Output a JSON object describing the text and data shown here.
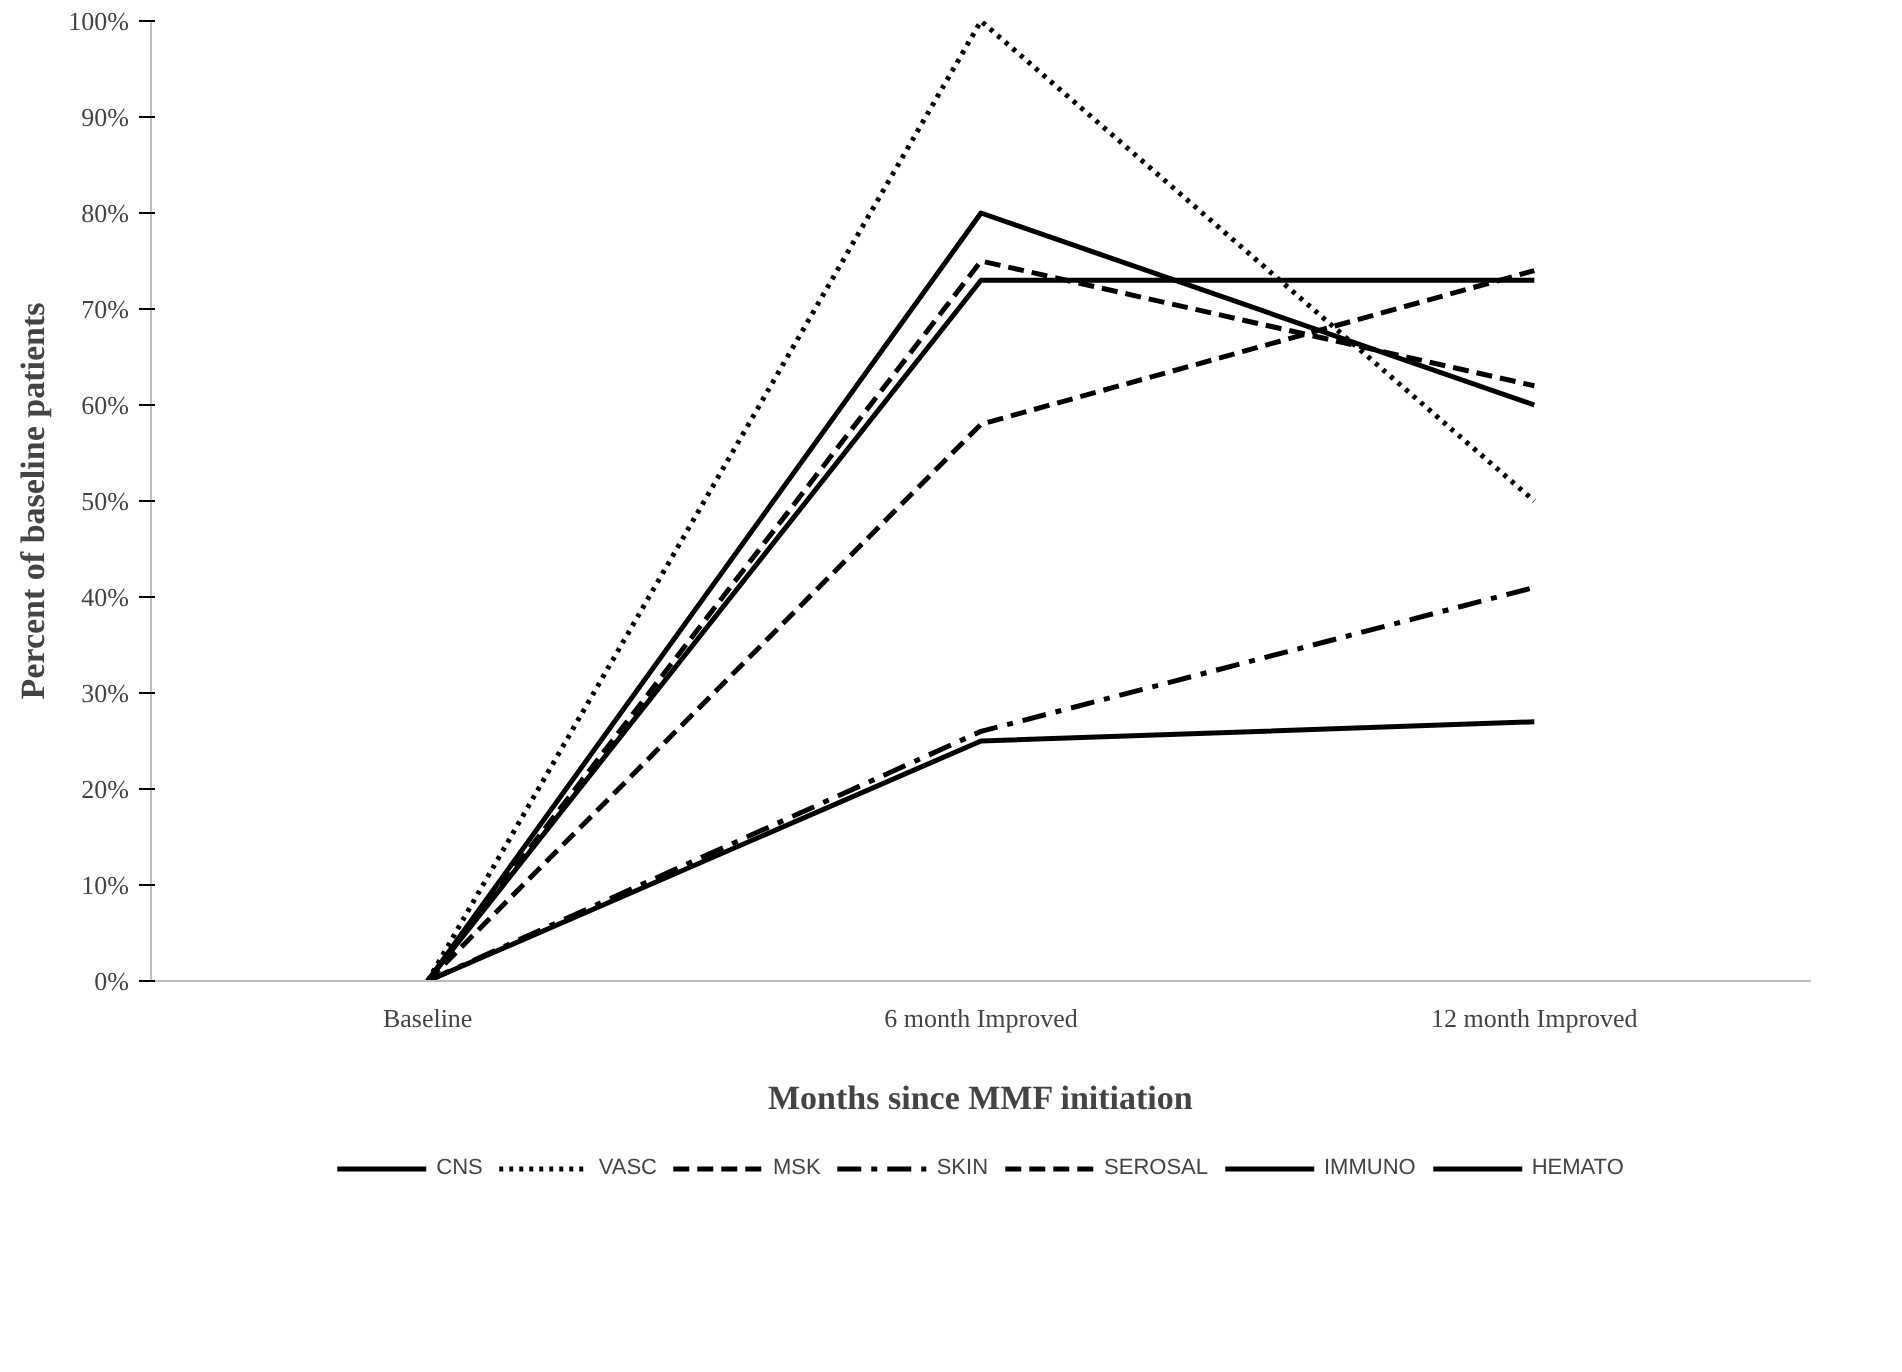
{
  "chart_data": {
    "type": "line",
    "xlabel": "Months since MMF initiation",
    "ylabel": "Percent of baseline patients",
    "categories": [
      "Baseline",
      "6 month Improved",
      "12 month Improved"
    ],
    "ylim": [
      0,
      100
    ],
    "yticks": [
      {
        "value": 0,
        "label": "0%"
      },
      {
        "value": 10,
        "label": "10%"
      },
      {
        "value": 20,
        "label": "20%"
      },
      {
        "value": 30,
        "label": "30%"
      },
      {
        "value": 40,
        "label": "40%"
      },
      {
        "value": 50,
        "label": "50%"
      },
      {
        "value": 60,
        "label": "60%"
      },
      {
        "value": 70,
        "label": "70%"
      },
      {
        "value": 80,
        "label": "80%"
      },
      {
        "value": 90,
        "label": "90%"
      },
      {
        "value": 100,
        "label": "100%"
      }
    ],
    "grid": false,
    "legend": "bottom",
    "marker": "none",
    "series": [
      {
        "name": "CNS",
        "color": "#000000",
        "line_style": "solid",
        "values": [
          0,
          73,
          73
        ]
      },
      {
        "name": "VASC",
        "color": "#000000",
        "line_style": "dotted",
        "values": [
          0,
          100,
          50
        ]
      },
      {
        "name": "MSK",
        "color": "#000000",
        "line_style": "dashed",
        "values": [
          0,
          58,
          74
        ]
      },
      {
        "name": "SKIN",
        "color": "#000000",
        "line_style": "dashdot",
        "values": [
          0,
          26,
          41
        ]
      },
      {
        "name": "SEROSAL",
        "color": "#000000",
        "line_style": "dashed",
        "values": [
          0,
          75,
          62
        ]
      },
      {
        "name": "IMMUNO",
        "color": "#000000",
        "line_style": "solid",
        "values": [
          0,
          80,
          60
        ]
      },
      {
        "name": "HEMATO",
        "color": "#000000",
        "line_style": "solid",
        "values": [
          0,
          25,
          27
        ]
      }
    ]
  }
}
